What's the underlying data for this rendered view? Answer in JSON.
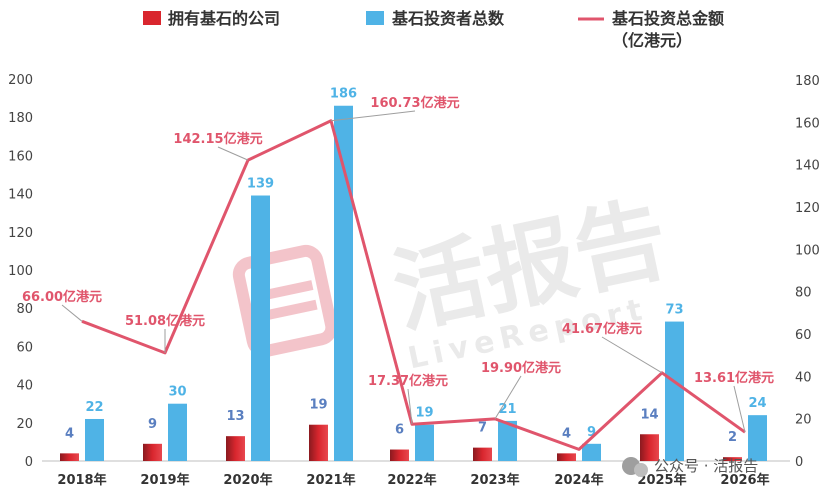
{
  "legend": {
    "company": "拥有基石的公司",
    "investor": "基石投资者总数",
    "amount_line1": "基石投资总金额",
    "amount_line2": "（亿港元）"
  },
  "footer": "公众号 · 活报告",
  "watermark": {
    "main": "活报告",
    "sub": "LiveReport"
  },
  "colors": {
    "company_bar": "#d9262e",
    "investor_bar": "#4fb3e6",
    "amount_line": "#e0556c"
  },
  "chart_data": {
    "type": "bar",
    "categories": [
      "2018年",
      "2019年",
      "2020年",
      "2021年",
      "2022年",
      "2023年",
      "2024年",
      "2025年",
      "2026年"
    ],
    "series": [
      {
        "name": "拥有基石的公司",
        "type": "bar",
        "axis": "left",
        "values": [
          4,
          9,
          13,
          19,
          6,
          7,
          4,
          14,
          2
        ]
      },
      {
        "name": "基石投资者总数",
        "type": "bar",
        "axis": "left",
        "values": [
          22,
          30,
          139,
          186,
          19,
          21,
          9,
          73,
          24
        ]
      },
      {
        "name": "基石投资总金额（亿港元）",
        "type": "line",
        "axis": "right",
        "values": [
          66.0,
          51.08,
          142.15,
          160.73,
          17.37,
          19.9,
          5.5,
          41.67,
          13.61
        ],
        "labels": [
          "66.00亿港元",
          "51.08亿港元",
          "142.15亿港元",
          "160.73亿港元",
          "17.37亿港元",
          "19.90亿港元",
          "",
          "41.67亿港元",
          "13.61亿港元"
        ]
      }
    ],
    "y_left": {
      "ticks": [
        "0",
        "20",
        "40",
        "60",
        "80",
        "100",
        "120",
        "140",
        "160",
        "180",
        "200"
      ],
      "ylim": [
        0,
        200
      ]
    },
    "y_right": {
      "ticks": [
        "0",
        "20",
        "40",
        "60",
        "80",
        "100",
        "120",
        "140",
        "160",
        "180"
      ],
      "ylim": [
        0,
        180
      ]
    },
    "grid": false,
    "legend_position": "top"
  }
}
